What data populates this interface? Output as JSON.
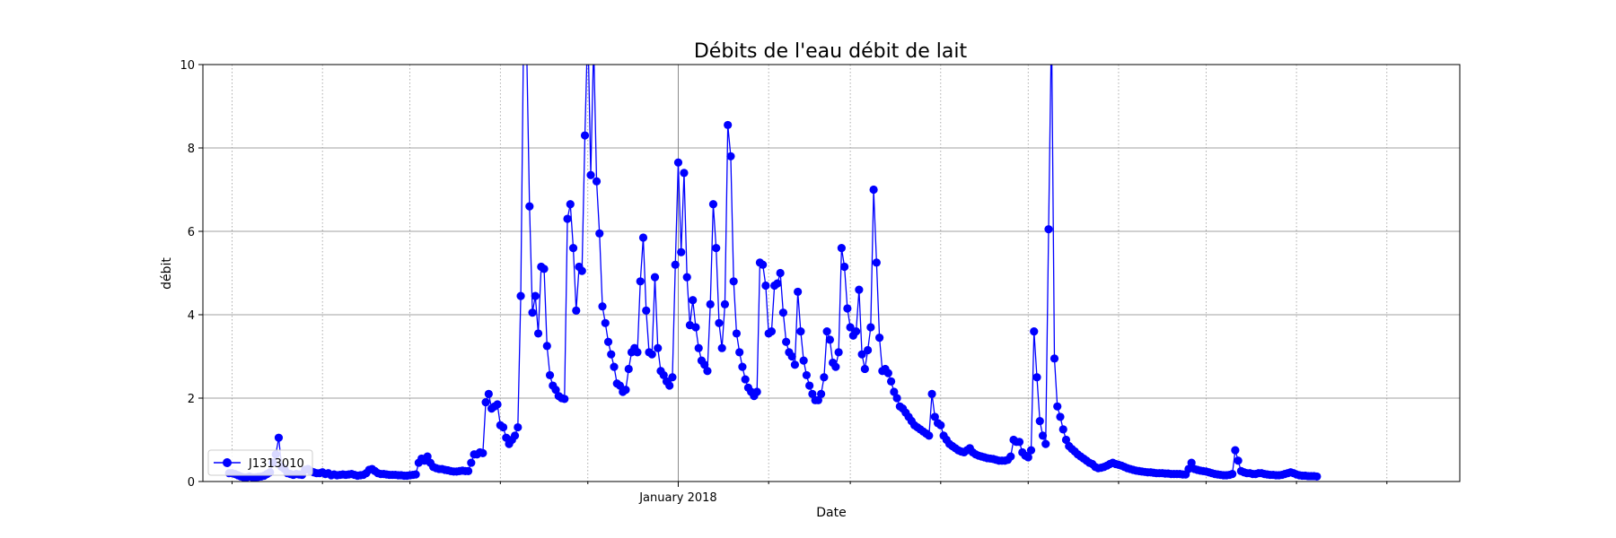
{
  "chart_data": {
    "type": "line",
    "title": "Débits de l'eau débit de lait",
    "xlabel": "Date",
    "ylabel": "débit",
    "ylim": [
      0,
      10
    ],
    "yticks": [
      0,
      2,
      4,
      6,
      8,
      10
    ],
    "xlim": [
      "2017-07-22",
      "2018-09-26"
    ],
    "xtick_labels": [
      {
        "date": "2018-01-01",
        "label": "January 2018"
      }
    ],
    "xgrid_dates": [
      "2017-08-01",
      "2017-09-01",
      "2017-10-01",
      "2017-11-01",
      "2017-12-01",
      "2018-01-01",
      "2018-02-01",
      "2018-03-01",
      "2018-04-01",
      "2018-05-01",
      "2018-06-01",
      "2018-07-01",
      "2018-08-01",
      "2018-09-01"
    ],
    "grid": true,
    "legend_position": "lower-left",
    "color": "#0000ff",
    "series": [
      {
        "name": "J1313010",
        "x_start": "2017-07-31",
        "step_days": 1,
        "values": [
          0.2,
          0.2,
          0.18,
          0.15,
          0.12,
          0.1,
          0.1,
          0.12,
          0.1,
          0.1,
          0.11,
          0.12,
          0.14,
          0.18,
          0.22,
          0.45,
          0.65,
          1.05,
          0.35,
          0.3,
          0.2,
          0.18,
          0.16,
          0.18,
          0.17,
          0.16,
          0.28,
          0.3,
          0.25,
          0.22,
          0.2,
          0.2,
          0.22,
          0.18,
          0.2,
          0.15,
          0.17,
          0.15,
          0.16,
          0.17,
          0.16,
          0.17,
          0.18,
          0.16,
          0.14,
          0.15,
          0.16,
          0.2,
          0.28,
          0.3,
          0.25,
          0.2,
          0.18,
          0.18,
          0.17,
          0.16,
          0.16,
          0.16,
          0.15,
          0.15,
          0.14,
          0.14,
          0.15,
          0.16,
          0.17,
          0.45,
          0.55,
          0.5,
          0.6,
          0.45,
          0.35,
          0.32,
          0.3,
          0.3,
          0.28,
          0.27,
          0.25,
          0.24,
          0.24,
          0.25,
          0.26,
          0.25,
          0.25,
          0.45,
          0.65,
          0.65,
          0.7,
          0.68,
          1.9,
          2.1,
          1.75,
          1.8,
          1.85,
          1.35,
          1.3,
          1.05,
          0.9,
          1.0,
          1.1,
          1.3,
          4.45,
          11.0,
          10.5,
          6.6,
          4.05,
          4.45,
          3.55,
          5.15,
          5.1,
          3.25,
          2.55,
          2.3,
          2.2,
          2.05,
          2.0,
          1.98,
          6.3,
          6.65,
          5.6,
          4.1,
          5.15,
          5.05,
          8.3,
          11.0,
          7.35,
          10.5,
          7.2,
          5.95,
          4.2,
          3.8,
          3.35,
          3.05,
          2.75,
          2.35,
          2.3,
          2.15,
          2.2,
          2.7,
          3.1,
          3.2,
          3.1,
          4.8,
          5.85,
          4.1,
          3.1,
          3.05,
          4.9,
          3.2,
          2.65,
          2.55,
          2.4,
          2.3,
          2.5,
          5.2,
          7.65,
          5.5,
          7.4,
          4.9,
          3.75,
          4.35,
          3.7,
          3.2,
          2.9,
          2.8,
          2.65,
          4.25,
          6.65,
          5.6,
          3.8,
          3.2,
          4.25,
          8.55,
          7.8,
          4.8,
          3.55,
          3.1,
          2.75,
          2.45,
          2.25,
          2.15,
          2.05,
          2.15,
          5.25,
          5.2,
          4.7,
          3.55,
          3.6,
          4.7,
          4.75,
          5.0,
          4.05,
          3.35,
          3.1,
          3.0,
          2.8,
          4.55,
          3.6,
          2.9,
          2.55,
          2.3,
          2.1,
          1.95,
          1.95,
          2.1,
          2.5,
          3.6,
          3.4,
          2.85,
          2.75,
          3.1,
          5.6,
          5.15,
          4.15,
          3.7,
          3.5,
          3.6,
          4.6,
          3.05,
          2.7,
          3.15,
          3.7,
          7.0,
          5.25,
          3.45,
          2.65,
          2.7,
          2.6,
          2.4,
          2.15,
          2.0,
          1.8,
          1.75,
          1.65,
          1.55,
          1.45,
          1.35,
          1.3,
          1.25,
          1.2,
          1.15,
          1.1,
          2.1,
          1.55,
          1.4,
          1.35,
          1.1,
          1.0,
          0.9,
          0.85,
          0.8,
          0.75,
          0.72,
          0.7,
          0.75,
          0.8,
          0.7,
          0.65,
          0.62,
          0.6,
          0.58,
          0.56,
          0.55,
          0.54,
          0.52,
          0.5,
          0.5,
          0.5,
          0.52,
          0.6,
          1.0,
          0.95,
          0.95,
          0.7,
          0.62,
          0.58,
          0.75,
          3.6,
          2.5,
          1.45,
          1.1,
          0.9,
          6.05,
          11.0,
          2.95,
          1.8,
          1.55,
          1.25,
          1.0,
          0.85,
          0.78,
          0.72,
          0.65,
          0.6,
          0.55,
          0.5,
          0.45,
          0.42,
          0.35,
          0.32,
          0.33,
          0.35,
          0.38,
          0.42,
          0.45,
          0.42,
          0.4,
          0.38,
          0.35,
          0.32,
          0.3,
          0.28,
          0.26,
          0.25,
          0.24,
          0.23,
          0.22,
          0.22,
          0.21,
          0.2,
          0.2,
          0.2,
          0.19,
          0.19,
          0.18,
          0.18,
          0.18,
          0.18,
          0.17,
          0.17,
          0.3,
          0.45,
          0.3,
          0.28,
          0.26,
          0.25,
          0.24,
          0.22,
          0.2,
          0.18,
          0.17,
          0.16,
          0.15,
          0.15,
          0.16,
          0.18,
          0.75,
          0.5,
          0.25,
          0.22,
          0.2,
          0.2,
          0.18,
          0.18,
          0.2,
          0.2,
          0.18,
          0.17,
          0.16,
          0.16,
          0.15,
          0.15,
          0.16,
          0.18,
          0.2,
          0.22,
          0.2,
          0.17,
          0.15,
          0.14,
          0.14,
          0.13,
          0.13,
          0.13,
          0.12
        ]
      }
    ]
  }
}
